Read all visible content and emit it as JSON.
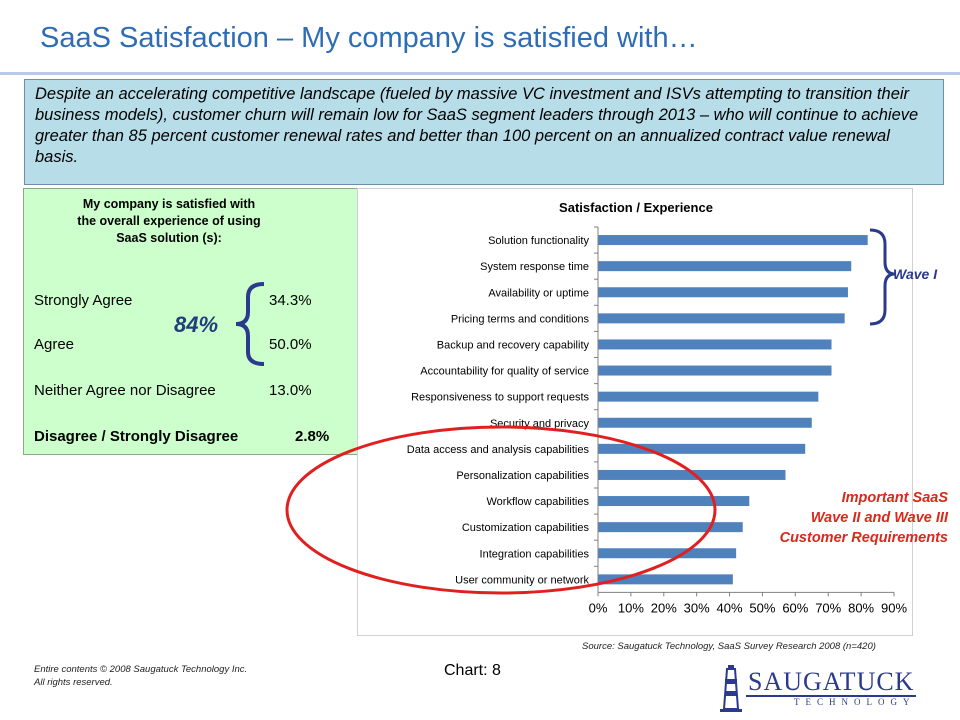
{
  "slide": {
    "title": "SaaS Satisfaction – My company is satisfied with…",
    "callout": "Despite an accelerating competitive landscape (fueled by massive VC investment and ISVs attempting to transition their business models), customer churn will remain low for SaaS segment leaders through 2013 – who will continue to achieve greater than 85 percent customer renewal rates and better than 100 percent on an annualized contract value renewal basis."
  },
  "survey": {
    "heading_line1": "My company is satisfied with",
    "heading_line2": "the overall experience of using",
    "heading_line3": "SaaS solution (s):",
    "rows": [
      {
        "label": "Strongly Agree",
        "value": "34.3%"
      },
      {
        "label": "Agree",
        "value": "50.0%"
      },
      {
        "label": "Neither Agree nor Disagree",
        "value": "13.0%"
      },
      {
        "label": "Disagree / Strongly Disagree",
        "value": "2.8%"
      }
    ],
    "combined": "84%"
  },
  "annotations": {
    "wave1": "Wave I",
    "important_line1": "Important SaaS",
    "important_line2": "Wave II and Wave III",
    "important_line3": "Customer Requirements",
    "brace_color": "#2b3a8c",
    "ellipse_color": "#e02020"
  },
  "footer": {
    "source": "Source: Saugatuck Technology, SaaS Survey Research  2008 (n=420)",
    "copyright_line1": "Entire contents © 2008 Saugatuck Technology Inc.",
    "copyright_line2": "All rights reserved.",
    "chart_label": "Chart:  8",
    "logo_word": "SAUGATUCK",
    "logo_sub": "TECHNOLOGY"
  },
  "chart_data": {
    "type": "bar",
    "orientation": "horizontal",
    "title": "Satisfaction / Experience",
    "categories": [
      "Solution functionality",
      "System response time",
      "Availability or uptime",
      "Pricing terms and conditions",
      "Backup and recovery capability",
      "Accountability for quality of service",
      "Responsiveness to support requests",
      "Security and privacy",
      "Data access and analysis capabilities",
      "Personalization capabilities",
      "Workflow capabilities",
      "Customization capabilities",
      "Integration capabilities",
      "User community or network"
    ],
    "values": [
      0.82,
      0.77,
      0.76,
      0.75,
      0.71,
      0.71,
      0.67,
      0.65,
      0.63,
      0.57,
      0.46,
      0.44,
      0.42,
      0.41
    ],
    "xlim": [
      0,
      0.9
    ],
    "xticks": [
      "0%",
      "10%",
      "20%",
      "30%",
      "40%",
      "50%",
      "60%",
      "70%",
      "80%",
      "90%"
    ],
    "bar_color": "#4f81bd",
    "grid": false,
    "legend": "none"
  }
}
